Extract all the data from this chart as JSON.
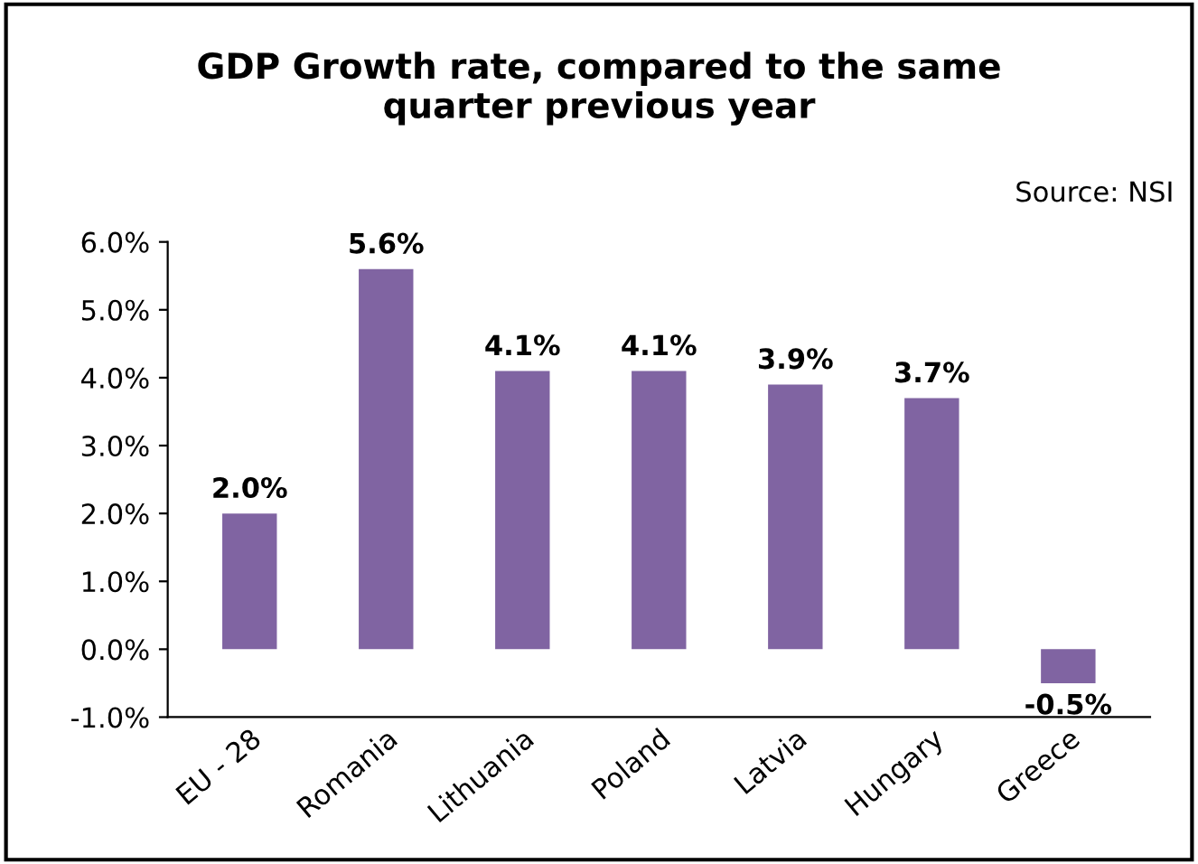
{
  "chart_data": {
    "type": "bar",
    "title": "GDP Growth rate, compared to the same\nquarter previous year",
    "annotations": [
      "Source: NSI"
    ],
    "categories": [
      "EU - 28",
      "Romania",
      "Lithuania",
      "Poland",
      "Latvia",
      "Hungary",
      "Greece"
    ],
    "values": [
      2.0,
      5.6,
      4.1,
      4.1,
      3.9,
      3.7,
      -0.5
    ],
    "value_labels": [
      "2.0%",
      "5.6%",
      "4.1%",
      "4.1%",
      "3.9%",
      "3.7%",
      "-0.5%"
    ],
    "color": "#8064a2",
    "ylim": [
      -1.0,
      6.0
    ],
    "yticks": [
      {
        "value": -1,
        "label": "-1.0%"
      },
      {
        "value": 0,
        "label": "0.0%"
      },
      {
        "value": 1,
        "label": "1.0%"
      },
      {
        "value": 2,
        "label": "2.0%"
      },
      {
        "value": 3,
        "label": "3.0%"
      },
      {
        "value": 4,
        "label": "4.0%"
      },
      {
        "value": 5,
        "label": "5.0%"
      },
      {
        "value": 6,
        "label": "6.0%"
      }
    ],
    "grid": false,
    "legend": false
  }
}
